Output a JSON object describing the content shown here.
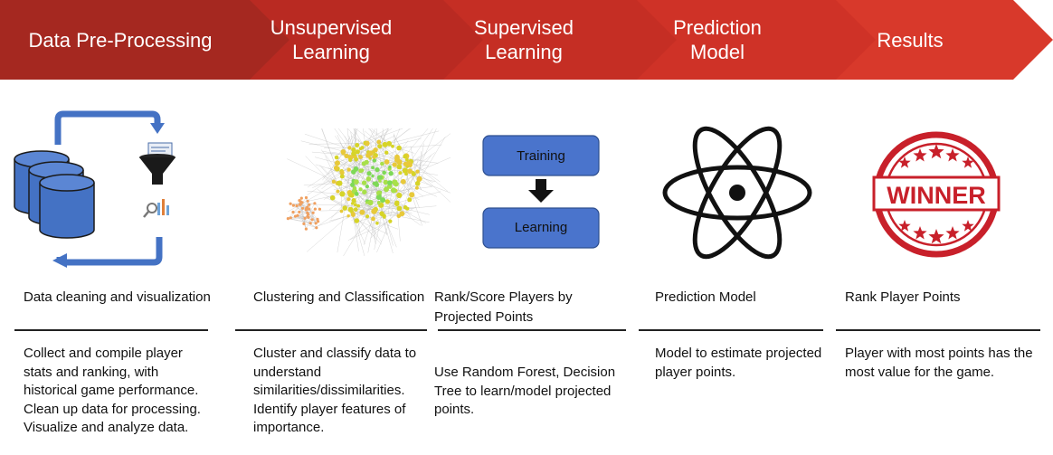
{
  "colors": {
    "arrow_1": "#a52820",
    "arrow_2": "#b92a22",
    "arrow_3": "#c52e24",
    "arrow_4": "#cf3227",
    "arrow_5": "#d8392b",
    "icon_blue": "#4472c4",
    "box_blue": "#4a74cc",
    "winner_red": "#c8202a"
  },
  "steps": [
    {
      "title": "Data Pre-Processing"
    },
    {
      "title": "Unsupervised Learning"
    },
    {
      "title": "Supervised Learning"
    },
    {
      "title": "Prediction Model"
    },
    {
      "title": "Results"
    }
  ],
  "columns": [
    {
      "heading": "Data cleaning and visualization",
      "description": "Collect and compile player stats and ranking, with historical game performance. Clean up data for processing. Visualize and analyze data.",
      "icons": [
        "database-icon",
        "funnel-icon",
        "analytics-icon",
        "cycle-arrows-icon"
      ]
    },
    {
      "heading": "Clustering and Classification",
      "description": "Cluster and classify data to understand similarities/dissimilarities. Identify player features of importance.",
      "icons": [
        "network-cluster-icon"
      ]
    },
    {
      "heading": "Rank/Score Players by Projected Points",
      "description": "Use Random Forest, Decision Tree to learn/model projected points.",
      "flow_boxes": [
        "Training",
        "Learning"
      ],
      "icons": [
        "down-arrow-icon"
      ]
    },
    {
      "heading": "Prediction Model",
      "description": "Model to estimate projected player points.",
      "icons": [
        "atom-icon"
      ]
    },
    {
      "heading": "Rank Player Points",
      "description": "Player with most points has the most value for the game.",
      "stamp_text": "WINNER",
      "icons": [
        "winner-stamp-icon"
      ]
    }
  ]
}
